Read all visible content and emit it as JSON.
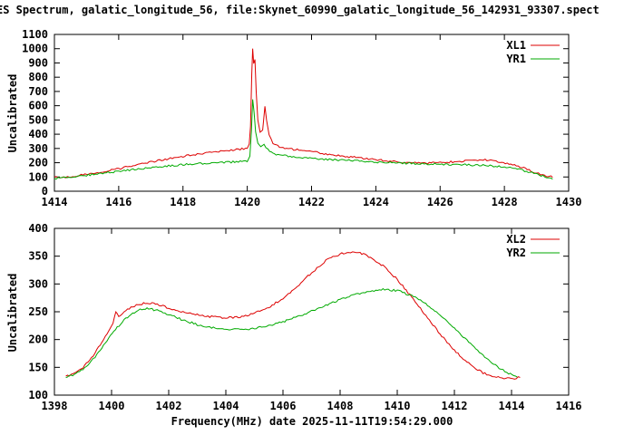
{
  "title": "ES Spectrum, galatic_longitude_56, file:Skynet_60990_galatic_longitude_56_142931_93307.spect",
  "colors": {
    "background": "#ffffff",
    "axis": "#000000",
    "series_red": "#dd0000",
    "series_green": "#00aa00"
  },
  "chart_data": [
    {
      "type": "line",
      "title": "",
      "ylabel": "Uncalibrated",
      "xlabel": "",
      "xlim": [
        1414,
        1430
      ],
      "ylim": [
        0,
        1100
      ],
      "xticks": [
        1414,
        1416,
        1418,
        1420,
        1422,
        1424,
        1426,
        1428,
        1430
      ],
      "yticks": [
        0,
        100,
        200,
        300,
        400,
        500,
        600,
        700,
        800,
        900,
        1000,
        1100
      ],
      "grid": false,
      "legend_position": "top-right",
      "series": [
        {
          "name": "XL1",
          "color": "#dd0000",
          "points": [
            [
              1414.0,
              95
            ],
            [
              1414.4,
              100
            ],
            [
              1415.0,
              118
            ],
            [
              1415.5,
              138
            ],
            [
              1416.0,
              158
            ],
            [
              1416.5,
              182
            ],
            [
              1417.0,
              205
            ],
            [
              1417.5,
              226
            ],
            [
              1418.0,
              245
            ],
            [
              1418.5,
              262
            ],
            [
              1419.0,
              276
            ],
            [
              1419.5,
              288
            ],
            [
              1420.0,
              300
            ],
            [
              1420.06,
              330
            ],
            [
              1420.1,
              450
            ],
            [
              1420.14,
              820
            ],
            [
              1420.17,
              1000
            ],
            [
              1420.2,
              900
            ],
            [
              1420.24,
              930
            ],
            [
              1420.28,
              700
            ],
            [
              1420.33,
              500
            ],
            [
              1420.4,
              420
            ],
            [
              1420.48,
              430
            ],
            [
              1420.55,
              590
            ],
            [
              1420.6,
              500
            ],
            [
              1420.68,
              400
            ],
            [
              1420.8,
              340
            ],
            [
              1421.0,
              310
            ],
            [
              1421.5,
              292
            ],
            [
              1422.0,
              278
            ],
            [
              1422.5,
              260
            ],
            [
              1423.0,
              246
            ],
            [
              1423.5,
              234
            ],
            [
              1424.0,
              222
            ],
            [
              1424.5,
              210
            ],
            [
              1425.0,
              202
            ],
            [
              1425.5,
              198
            ],
            [
              1426.0,
              200
            ],
            [
              1426.5,
              208
            ],
            [
              1427.0,
              217
            ],
            [
              1427.4,
              220
            ],
            [
              1427.8,
              210
            ],
            [
              1428.2,
              190
            ],
            [
              1428.6,
              162
            ],
            [
              1429.0,
              128
            ],
            [
              1429.3,
              108
            ],
            [
              1429.5,
              100
            ]
          ]
        },
        {
          "name": "YR1",
          "color": "#00aa00",
          "points": [
            [
              1414.0,
              88
            ],
            [
              1414.5,
              100
            ],
            [
              1415.0,
              112
            ],
            [
              1415.5,
              126
            ],
            [
              1416.0,
              140
            ],
            [
              1416.5,
              154
            ],
            [
              1417.0,
              166
            ],
            [
              1417.5,
              177
            ],
            [
              1418.0,
              186
            ],
            [
              1418.5,
              193
            ],
            [
              1419.0,
              199
            ],
            [
              1419.5,
              204
            ],
            [
              1420.0,
              212
            ],
            [
              1420.08,
              250
            ],
            [
              1420.13,
              420
            ],
            [
              1420.17,
              650
            ],
            [
              1420.21,
              560
            ],
            [
              1420.26,
              420
            ],
            [
              1420.33,
              340
            ],
            [
              1420.42,
              310
            ],
            [
              1420.52,
              330
            ],
            [
              1420.58,
              310
            ],
            [
              1420.7,
              275
            ],
            [
              1420.85,
              260
            ],
            [
              1421.0,
              252
            ],
            [
              1421.5,
              241
            ],
            [
              1422.0,
              232
            ],
            [
              1422.5,
              224
            ],
            [
              1423.0,
              217
            ],
            [
              1423.5,
              211
            ],
            [
              1424.0,
              205
            ],
            [
              1424.5,
              200
            ],
            [
              1425.0,
              196
            ],
            [
              1425.5,
              192
            ],
            [
              1426.0,
              190
            ],
            [
              1426.5,
              187
            ],
            [
              1427.0,
              184
            ],
            [
              1427.5,
              179
            ],
            [
              1428.0,
              170
            ],
            [
              1428.4,
              155
            ],
            [
              1428.8,
              133
            ],
            [
              1429.2,
              107
            ],
            [
              1429.5,
              90
            ]
          ]
        }
      ]
    },
    {
      "type": "line",
      "title": "",
      "ylabel": "Uncalibrated",
      "xlabel": "Frequency(MHz) date 2025-11-11T19:54:29.000",
      "xlim": [
        1398,
        1416
      ],
      "ylim": [
        100,
        400
      ],
      "xticks": [
        1398,
        1400,
        1402,
        1404,
        1406,
        1408,
        1410,
        1412,
        1414,
        1416
      ],
      "yticks": [
        100,
        150,
        200,
        250,
        300,
        350,
        400
      ],
      "grid": false,
      "legend_position": "top-right",
      "series": [
        {
          "name": "XL2",
          "color": "#dd0000",
          "points": [
            [
              1398.4,
              133
            ],
            [
              1398.7,
              139
            ],
            [
              1399.0,
              150
            ],
            [
              1399.3,
              167
            ],
            [
              1399.6,
              190
            ],
            [
              1399.9,
              214
            ],
            [
              1400.05,
              230
            ],
            [
              1400.15,
              250
            ],
            [
              1400.25,
              242
            ],
            [
              1400.5,
              252
            ],
            [
              1400.8,
              260
            ],
            [
              1401.0,
              264
            ],
            [
              1401.3,
              266
            ],
            [
              1401.6,
              263
            ],
            [
              1402.0,
              257
            ],
            [
              1402.5,
              250
            ],
            [
              1403.0,
              245
            ],
            [
              1403.5,
              241
            ],
            [
              1404.0,
              239
            ],
            [
              1404.5,
              241
            ],
            [
              1405.0,
              247
            ],
            [
              1405.5,
              258
            ],
            [
              1406.0,
              274
            ],
            [
              1406.5,
              296
            ],
            [
              1407.0,
              320
            ],
            [
              1407.5,
              342
            ],
            [
              1408.0,
              354
            ],
            [
              1408.3,
              358
            ],
            [
              1408.7,
              356
            ],
            [
              1409.0,
              349
            ],
            [
              1409.5,
              333
            ],
            [
              1410.0,
              308
            ],
            [
              1410.5,
              277
            ],
            [
              1411.0,
              243
            ],
            [
              1411.5,
              210
            ],
            [
              1412.0,
              181
            ],
            [
              1412.5,
              157
            ],
            [
              1413.0,
              140
            ],
            [
              1413.4,
              133
            ],
            [
              1413.8,
              130
            ],
            [
              1414.1,
              130
            ],
            [
              1414.3,
              133
            ]
          ]
        },
        {
          "name": "YR2",
          "color": "#00aa00",
          "points": [
            [
              1398.4,
              132
            ],
            [
              1398.7,
              137
            ],
            [
              1399.0,
              146
            ],
            [
              1399.3,
              161
            ],
            [
              1399.6,
              181
            ],
            [
              1399.9,
              203
            ],
            [
              1400.2,
              222
            ],
            [
              1400.5,
              238
            ],
            [
              1400.8,
              249
            ],
            [
              1401.0,
              254
            ],
            [
              1401.3,
              256
            ],
            [
              1401.6,
              252
            ],
            [
              1402.0,
              245
            ],
            [
              1402.5,
              235
            ],
            [
              1403.0,
              227
            ],
            [
              1403.5,
              222
            ],
            [
              1404.0,
              219
            ],
            [
              1404.5,
              218
            ],
            [
              1405.0,
              220
            ],
            [
              1405.5,
              225
            ],
            [
              1406.0,
              232
            ],
            [
              1406.5,
              241
            ],
            [
              1407.0,
              251
            ],
            [
              1407.5,
              262
            ],
            [
              1408.0,
              272
            ],
            [
              1408.5,
              281
            ],
            [
              1409.0,
              287
            ],
            [
              1409.5,
              290
            ],
            [
              1410.0,
              288
            ],
            [
              1410.5,
              279
            ],
            [
              1411.0,
              264
            ],
            [
              1411.5,
              244
            ],
            [
              1412.0,
              220
            ],
            [
              1412.5,
              195
            ],
            [
              1413.0,
              171
            ],
            [
              1413.5,
              151
            ],
            [
              1413.9,
              139
            ],
            [
              1414.2,
              134
            ]
          ]
        }
      ]
    }
  ]
}
